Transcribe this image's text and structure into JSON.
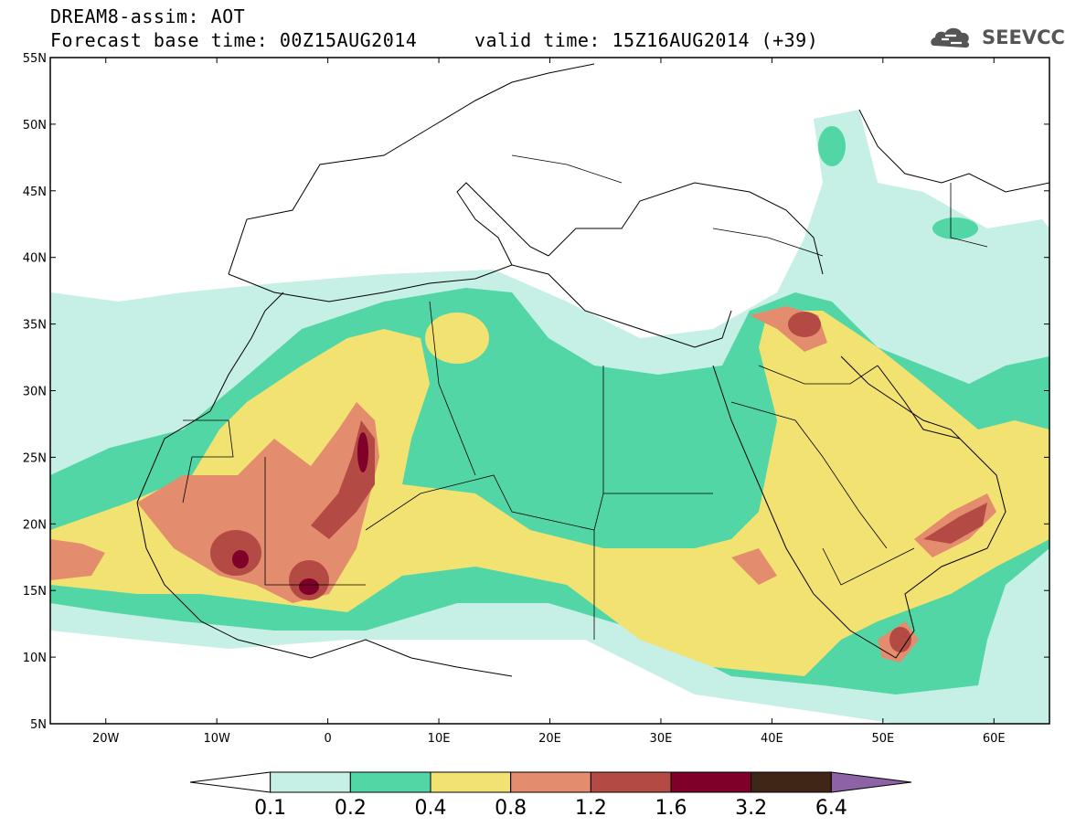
{
  "title": {
    "line1": "DREAM8-assim: AOT",
    "line2": "Forecast base time: 00Z15AUG2014     valid time: 15Z16AUG2014 (+39)"
  },
  "logo": {
    "text": "SEEVCCC",
    "icon": "cloud-icon"
  },
  "map": {
    "lon_range": [
      -25,
      65
    ],
    "lat_range": [
      5,
      55
    ],
    "y_ticks": [
      "55N",
      "50N",
      "45N",
      "40N",
      "35N",
      "30N",
      "25N",
      "20N",
      "15N",
      "10N",
      "5N"
    ],
    "x_ticks": [
      "20W",
      "10W",
      "0",
      "10E",
      "20E",
      "30E",
      "40E",
      "50E",
      "60E"
    ],
    "field": "AOT"
  },
  "colorbar": {
    "labels": [
      "0.1",
      "0.2",
      "0.4",
      "0.8",
      "1.2",
      "1.6",
      "3.2",
      "6.4"
    ],
    "colors": [
      "#ffffff",
      "#c6efe6",
      "#53d6a6",
      "#f2e272",
      "#e48c6e",
      "#b34a43",
      "#7f0028",
      "#3f2617",
      "#8e63a6"
    ]
  }
}
